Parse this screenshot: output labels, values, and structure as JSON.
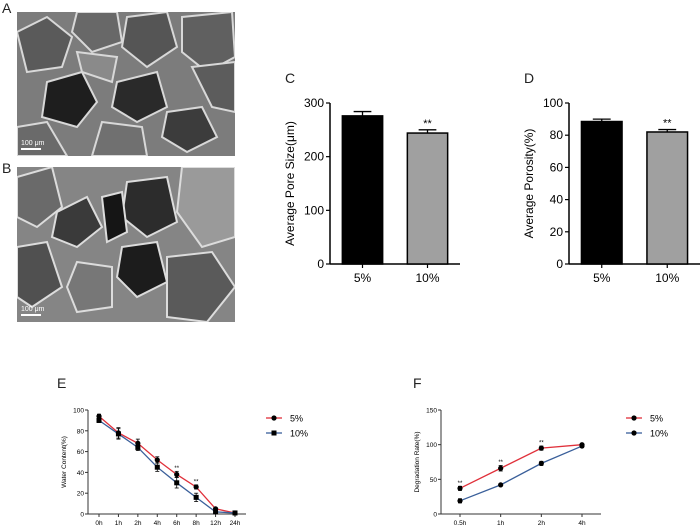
{
  "panels": {
    "A": {
      "letter": "A",
      "scale_label": "100 μm"
    },
    "B": {
      "letter": "B",
      "scale_label": "100 μm"
    },
    "C": {
      "letter": "C"
    },
    "D": {
      "letter": "D"
    },
    "E": {
      "letter": "E"
    },
    "F": {
      "letter": "F"
    }
  },
  "colors": {
    "black_bar": "#000000",
    "gray_bar": "#a0a0a0",
    "red": "#e0303a",
    "blue": "#3a5f9a"
  },
  "chart_data": [
    {
      "id": "C",
      "type": "bar",
      "title": "",
      "xlabel": "",
      "ylabel": "Average Pore Size(μm)",
      "categories": [
        "5%",
        "10%"
      ],
      "values": [
        276,
        244
      ],
      "errors": [
        8,
        6
      ],
      "bar_colors": [
        "#000000",
        "#a0a0a0"
      ],
      "annotations": [
        {
          "category": "10%",
          "text": "**"
        }
      ],
      "ylim": [
        0,
        300
      ],
      "yticks": [
        0,
        100,
        200,
        300
      ],
      "grid": false
    },
    {
      "id": "D",
      "type": "bar",
      "title": "",
      "xlabel": "",
      "ylabel": "Average Porosity(%)",
      "categories": [
        "5%",
        "10%"
      ],
      "values": [
        88.5,
        82
      ],
      "errors": [
        1.5,
        1.5
      ],
      "bar_colors": [
        "#000000",
        "#a0a0a0"
      ],
      "annotations": [
        {
          "category": "10%",
          "text": "**"
        }
      ],
      "ylim": [
        0,
        100
      ],
      "yticks": [
        0,
        20,
        40,
        60,
        80,
        100
      ],
      "grid": false
    },
    {
      "id": "E",
      "type": "line",
      "title": "",
      "xlabel": "",
      "ylabel": "Water Content(%)",
      "categories": [
        "0h",
        "1h",
        "2h",
        "4h",
        "6h",
        "8h",
        "12h",
        "24h"
      ],
      "series": [
        {
          "name": "5%",
          "color": "#e0303a",
          "values": [
            94,
            78,
            68,
            52,
            38,
            26,
            5,
            1
          ],
          "errors": [
            2,
            5,
            4,
            3,
            3,
            2,
            1,
            0.5
          ]
        },
        {
          "name": "10%",
          "color": "#3a5f9a",
          "values": [
            90,
            77,
            64,
            45,
            30,
            16,
            2,
            1
          ],
          "errors": [
            2,
            5,
            3,
            4,
            5,
            4,
            1,
            0.5
          ]
        }
      ],
      "annotations": [
        {
          "category": "6h",
          "text": "**"
        },
        {
          "category": "8h",
          "text": "**"
        }
      ],
      "ylim": [
        0,
        100
      ],
      "yticks": [
        0,
        20,
        40,
        60,
        80,
        100
      ],
      "legend_position": "right",
      "grid": false
    },
    {
      "id": "F",
      "type": "line",
      "title": "",
      "xlabel": "",
      "ylabel": "Degradation Rate(%)",
      "categories": [
        "0.5h",
        "1h",
        "2h",
        "4h"
      ],
      "series": [
        {
          "name": "5%",
          "color": "#e0303a",
          "values": [
            37,
            66,
            95,
            100
          ],
          "errors": [
            3,
            4,
            3,
            1
          ]
        },
        {
          "name": "10%",
          "color": "#3a5f9a",
          "values": [
            19,
            42,
            73,
            98
          ],
          "errors": [
            3,
            1,
            3,
            2
          ]
        }
      ],
      "annotations": [
        {
          "category": "0.5h",
          "text": "**"
        },
        {
          "category": "1h",
          "text": "**"
        },
        {
          "category": "2h",
          "text": "**"
        }
      ],
      "ylim": [
        0,
        150
      ],
      "yticks": [
        0,
        50,
        100,
        150
      ],
      "legend_position": "right",
      "grid": false
    }
  ]
}
